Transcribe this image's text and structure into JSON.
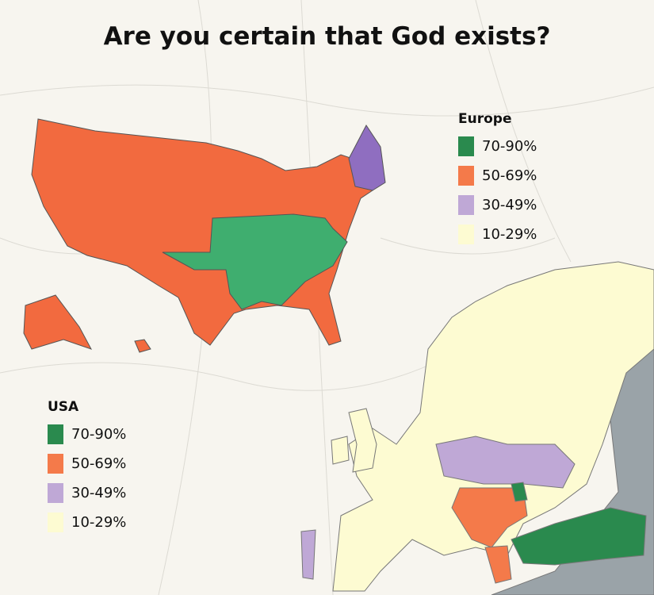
{
  "title": "Are you certain that God exists?",
  "colors": {
    "c70_90": "#2a8a4e",
    "c50_69": "#f47a4a",
    "c30_49": "#bfa8d6",
    "c10_29": "#fdfbd2",
    "usa_green": "#3fae6f",
    "usa_orange": "#f26a3f",
    "usa_purple": "#8f6ec0",
    "other": "#9aa3a8",
    "background": "#f7f5ef"
  },
  "legend_europe": {
    "heading": "Europe",
    "items": [
      {
        "label": "70-90%",
        "color": "#2a8a4e"
      },
      {
        "label": "50-69%",
        "color": "#f47a4a"
      },
      {
        "label": "30-49%",
        "color": "#bfa8d6"
      },
      {
        "label": "10-29%",
        "color": "#fdfbd2"
      }
    ]
  },
  "legend_usa": {
    "heading": "USA",
    "items": [
      {
        "label": "70-90%",
        "color": "#2a8a4e"
      },
      {
        "label": "50-69%",
        "color": "#f47a4a"
      },
      {
        "label": "30-49%",
        "color": "#bfa8d6"
      },
      {
        "label": "10-29%",
        "color": "#fdfbd2"
      }
    ]
  }
}
